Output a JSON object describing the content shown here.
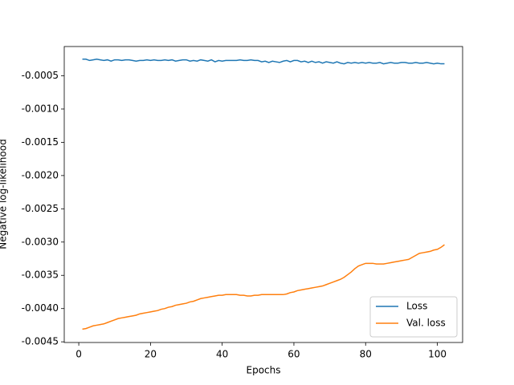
{
  "chart_data": {
    "type": "line",
    "xlabel": "Epochs",
    "ylabel": "Negative log-likelihood",
    "x": [
      1,
      2,
      3,
      4,
      5,
      6,
      7,
      8,
      9,
      10,
      11,
      12,
      13,
      14,
      15,
      16,
      17,
      18,
      19,
      20,
      21,
      22,
      23,
      24,
      25,
      26,
      27,
      28,
      29,
      30,
      31,
      32,
      33,
      34,
      35,
      36,
      37,
      38,
      39,
      40,
      41,
      42,
      43,
      44,
      45,
      46,
      47,
      48,
      49,
      50,
      51,
      52,
      53,
      54,
      55,
      56,
      57,
      58,
      59,
      60,
      61,
      62,
      63,
      64,
      65,
      66,
      67,
      68,
      69,
      70,
      71,
      72,
      73,
      74,
      75,
      76,
      77,
      78,
      79,
      80,
      81,
      82,
      83,
      84,
      85,
      86,
      87,
      88,
      89,
      90,
      91,
      92,
      93,
      94,
      95,
      96,
      97,
      98,
      99,
      100,
      101,
      102
    ],
    "series": [
      {
        "name": "Loss",
        "color": "#1f77b4",
        "values": [
          -0.00025,
          -0.00025,
          -0.00027,
          -0.00026,
          -0.00025,
          -0.00026,
          -0.00027,
          -0.00026,
          -0.00028,
          -0.00026,
          -0.00026,
          -0.00027,
          -0.00026,
          -0.00026,
          -0.00027,
          -0.00028,
          -0.00027,
          -0.00027,
          -0.00026,
          -0.00027,
          -0.00026,
          -0.00027,
          -0.00027,
          -0.00026,
          -0.00027,
          -0.00026,
          -0.00028,
          -0.00027,
          -0.00026,
          -0.00026,
          -0.00028,
          -0.00027,
          -0.00028,
          -0.00026,
          -0.00027,
          -0.00028,
          -0.00026,
          -0.00029,
          -0.00027,
          -0.00028,
          -0.00027,
          -0.00027,
          -0.00027,
          -0.00027,
          -0.00026,
          -0.00027,
          -0.00027,
          -0.00026,
          -0.00027,
          -0.00027,
          -0.00029,
          -0.00028,
          -0.0003,
          -0.00028,
          -0.00029,
          -0.0003,
          -0.00028,
          -0.00027,
          -0.00029,
          -0.00027,
          -0.00027,
          -0.00029,
          -0.00028,
          -0.0003,
          -0.00028,
          -0.0003,
          -0.00029,
          -0.00031,
          -0.00029,
          -0.0003,
          -0.00031,
          -0.00029,
          -0.00031,
          -0.00032,
          -0.0003,
          -0.00031,
          -0.0003,
          -0.00031,
          -0.0003,
          -0.00031,
          -0.0003,
          -0.00031,
          -0.00031,
          -0.0003,
          -0.00032,
          -0.00031,
          -0.0003,
          -0.00031,
          -0.00031,
          -0.0003,
          -0.0003,
          -0.00031,
          -0.00031,
          -0.0003,
          -0.00031,
          -0.00031,
          -0.0003,
          -0.00031,
          -0.00032,
          -0.00031,
          -0.00032,
          -0.00032
        ]
      },
      {
        "name": "Val. loss",
        "color": "#ff7f0e",
        "values": [
          -0.00431,
          -0.0043,
          -0.00428,
          -0.00426,
          -0.00425,
          -0.00424,
          -0.00423,
          -0.00421,
          -0.00419,
          -0.00417,
          -0.00415,
          -0.00414,
          -0.00413,
          -0.00412,
          -0.00411,
          -0.0041,
          -0.00408,
          -0.00407,
          -0.00406,
          -0.00405,
          -0.00404,
          -0.00403,
          -0.00401,
          -0.004,
          -0.00398,
          -0.00397,
          -0.00395,
          -0.00394,
          -0.00393,
          -0.00392,
          -0.0039,
          -0.00389,
          -0.00387,
          -0.00385,
          -0.00384,
          -0.00383,
          -0.00382,
          -0.00381,
          -0.0038,
          -0.0038,
          -0.00379,
          -0.00379,
          -0.00379,
          -0.00379,
          -0.0038,
          -0.0038,
          -0.00381,
          -0.00381,
          -0.0038,
          -0.0038,
          -0.00379,
          -0.00379,
          -0.00379,
          -0.00379,
          -0.00379,
          -0.00379,
          -0.00379,
          -0.00378,
          -0.00376,
          -0.00375,
          -0.00373,
          -0.00372,
          -0.00371,
          -0.0037,
          -0.00369,
          -0.00368,
          -0.00367,
          -0.00366,
          -0.00364,
          -0.00362,
          -0.0036,
          -0.00358,
          -0.00356,
          -0.00353,
          -0.00349,
          -0.00345,
          -0.0034,
          -0.00336,
          -0.00334,
          -0.00332,
          -0.00332,
          -0.00332,
          -0.00333,
          -0.00333,
          -0.00333,
          -0.00332,
          -0.00331,
          -0.0033,
          -0.00329,
          -0.00328,
          -0.00327,
          -0.00326,
          -0.00323,
          -0.0032,
          -0.00317,
          -0.00316,
          -0.00315,
          -0.00314,
          -0.00312,
          -0.00311,
          -0.00308,
          -0.00304
        ]
      }
    ],
    "xlim": [
      -4.05,
      107.05
    ],
    "xticks": [
      0,
      20,
      40,
      60,
      80,
      100
    ],
    "ylim": [
      -0.00451,
      -6e-05
    ],
    "yticks": [
      {
        "value": -0.0005,
        "label": "-0.0005"
      },
      {
        "value": -0.001,
        "label": "-0.0010"
      },
      {
        "value": -0.0015,
        "label": "-0.0015"
      },
      {
        "value": -0.002,
        "label": "-0.0020"
      },
      {
        "value": -0.0025,
        "label": "-0.0025"
      },
      {
        "value": -0.003,
        "label": "-0.0030"
      },
      {
        "value": -0.0035,
        "label": "-0.0035"
      },
      {
        "value": -0.004,
        "label": "-0.0040"
      },
      {
        "value": -0.0045,
        "label": "-0.0045"
      }
    ],
    "grid": false,
    "legend": "lower right"
  }
}
